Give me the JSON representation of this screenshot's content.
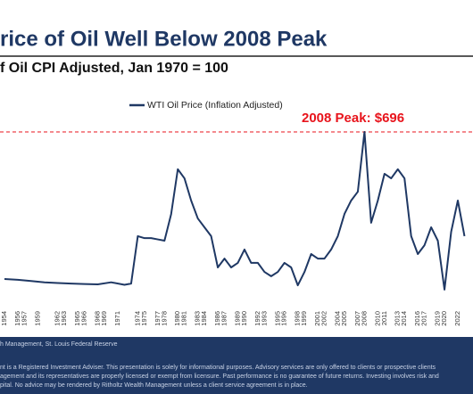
{
  "chart_data": {
    "type": "line",
    "title": "rice of Oil Well Below 2008 Peak",
    "subtitle": "f Oil CPI Adjusted, Jan 1970 = 100",
    "annotation": {
      "text": "2008 Peak: $696",
      "value": 696,
      "color": "#e8141c"
    },
    "x": [
      1954,
      1956,
      1958,
      1960,
      1962,
      1964,
      1966,
      1968,
      1970,
      1972,
      1973,
      1974,
      1975,
      1976,
      1977,
      1978,
      1979,
      1980,
      1981,
      1982,
      1983,
      1984,
      1985,
      1986,
      1987,
      1988,
      1989,
      1990,
      1991,
      1992,
      1993,
      1994,
      1995,
      1996,
      1997,
      1998,
      1999,
      2000,
      2001,
      2002,
      2003,
      2004,
      2005,
      2006,
      2007,
      2008,
      2009,
      2010,
      2011,
      2012,
      2013,
      2014,
      2015,
      2016,
      2017,
      2018,
      2019,
      2020,
      2021,
      2022,
      2023
    ],
    "series": [
      {
        "name": "WTI Oil Price (Inflation Adjusted)",
        "color": "#1f3864",
        "values": [
          113,
          110,
          105,
          100,
          97,
          95,
          93,
          92,
          100,
          90,
          95,
          283,
          275,
          275,
          270,
          265,
          370,
          548,
          512,
          424,
          353,
          318,
          283,
          159,
          194,
          159,
          177,
          230,
          177,
          177,
          141,
          124,
          141,
          177,
          159,
          88,
          141,
          212,
          194,
          194,
          230,
          283,
          371,
          424,
          459,
          696,
          336,
          424,
          530,
          512,
          548,
          512,
          283,
          212,
          247,
          318,
          265,
          71,
          300,
          424,
          283
        ]
      }
    ],
    "xlim": [
      1954,
      2022
    ],
    "ylim": [
      0,
      696
    ],
    "xticks": [
      1954,
      1956,
      1957,
      1959,
      1962,
      1963,
      1965,
      1966,
      1968,
      1969,
      1971,
      1974,
      1975,
      1977,
      1978,
      1980,
      1981,
      1983,
      1984,
      1986,
      1987,
      1989,
      1990,
      1992,
      1993,
      1995,
      1996,
      1998,
      1999,
      2001,
      2002,
      2004,
      2005,
      2007,
      2008,
      2010,
      2011,
      2013,
      2014,
      2016,
      2017,
      2019,
      2020,
      2022
    ]
  },
  "footer": {
    "source": "h Management, St. Louis Federal Reserve",
    "disclaimer": [
      "nt is a Registered Investment Adviser. This presentation is solely for informational purposes. Advisory services are only offered to clients or prospective clients",
      "agement and its representatives are properly licensed or exempt from licensure. Past performance is no guarantee of future returns. Investing involves risk and",
      "pital. No advice may be rendered by Ritholtz Wealth Management unless a client service agreement is in place."
    ]
  }
}
